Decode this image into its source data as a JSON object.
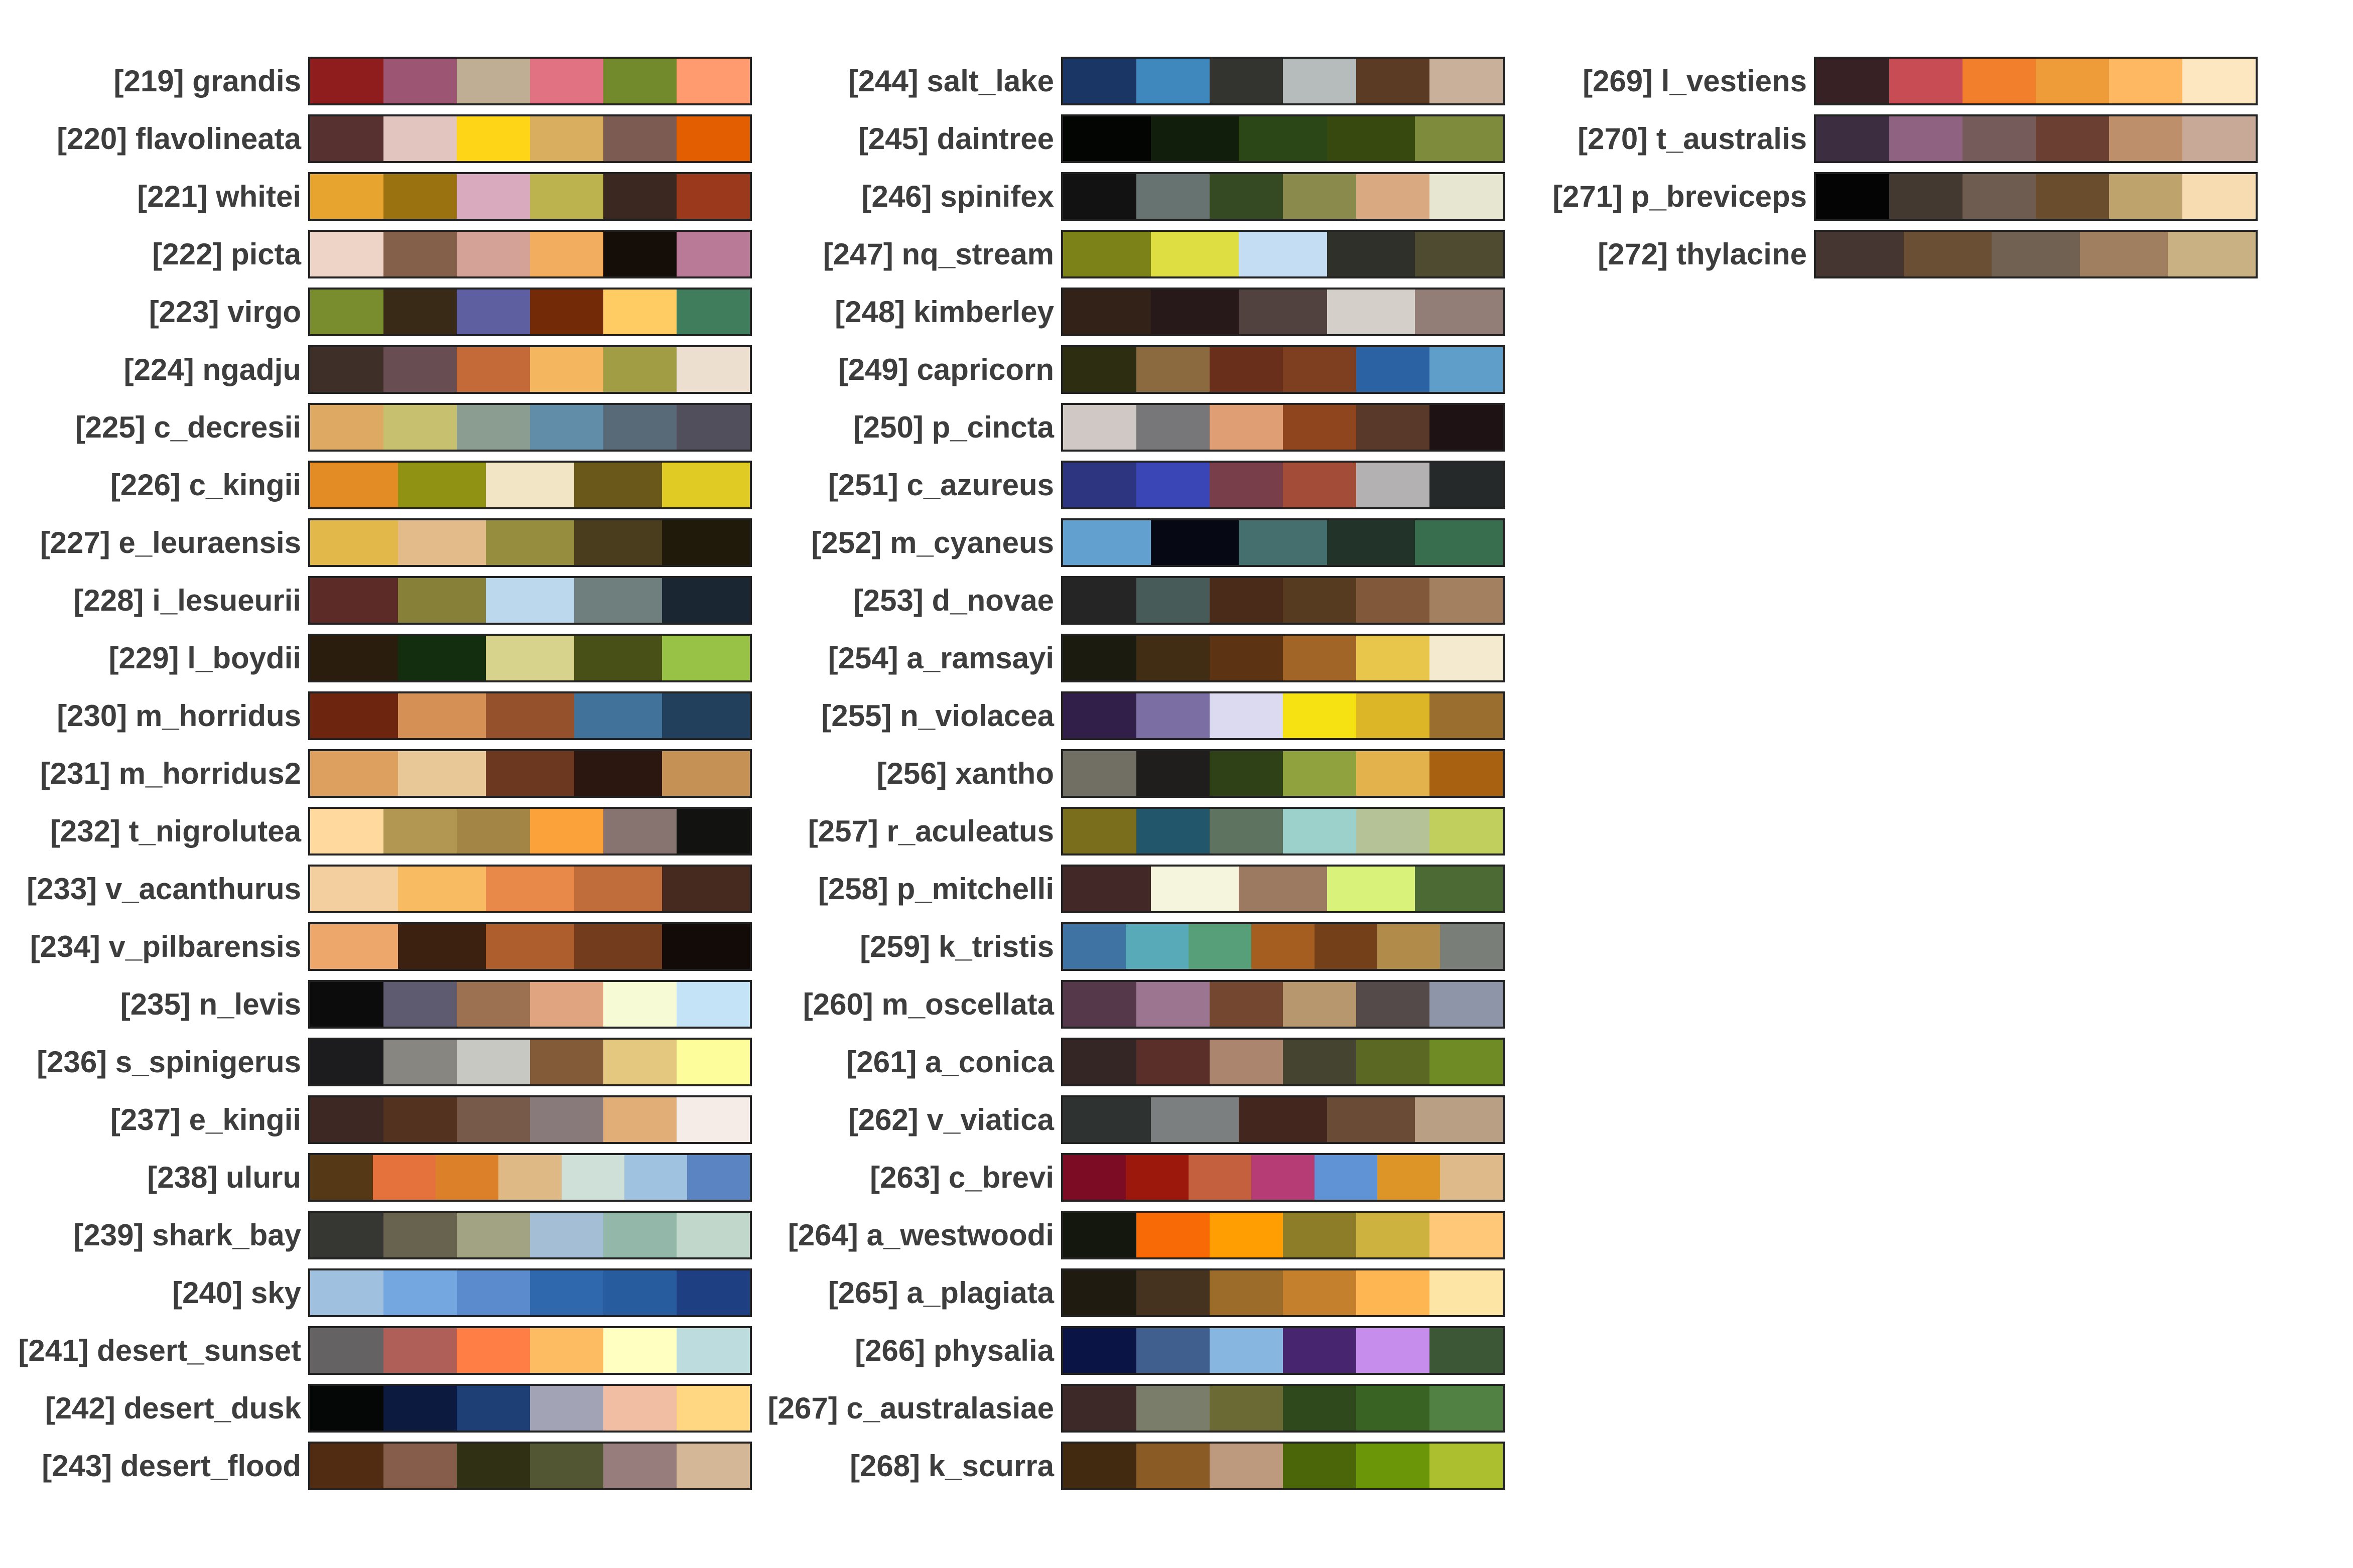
{
  "columns": [
    {
      "palettes": [
        {
          "label": "[219] grandis",
          "colors": [
            "#8f1d1e",
            "#9c5673",
            "#bfae94",
            "#e07282",
            "#728a2c",
            "#ff9b6e"
          ]
        },
        {
          "label": "[220] flavolineata",
          "colors": [
            "#573030",
            "#e3c5bf",
            "#ffd517",
            "#d9ae5f",
            "#7c5c52",
            "#e35e00"
          ]
        },
        {
          "label": "[221] whitei",
          "colors": [
            "#e7a42f",
            "#9a7210",
            "#d9a9bd",
            "#bcb34f",
            "#3b2820",
            "#9b391d"
          ]
        },
        {
          "label": "[222] picta",
          "colors": [
            "#eed4c7",
            "#84604b",
            "#d5a298",
            "#f2ad5e",
            "#150d08",
            "#b97a98"
          ]
        },
        {
          "label": "[223] virgo",
          "colors": [
            "#7a8d2e",
            "#382a16",
            "#5d5fa1",
            "#732a06",
            "#ffcb63",
            "#3f7d5c"
          ]
        },
        {
          "label": "[224] ngadju",
          "colors": [
            "#3e2f28",
            "#684e52",
            "#c36a38",
            "#f4b760",
            "#a09d44",
            "#eddfcf"
          ]
        },
        {
          "label": "[225] c_decresii",
          "colors": [
            "#dea962",
            "#c7c16f",
            "#8b9d91",
            "#628da8",
            "#586a78",
            "#514f5c"
          ]
        },
        {
          "label": "[226] c_kingii",
          "colors": [
            "#e38b24",
            "#8f9212",
            "#f1e5c5",
            "#6a581a",
            "#dfcb23"
          ]
        },
        {
          "label": "[227] e_leuraensis",
          "colors": [
            "#e3b84a",
            "#e3ba89",
            "#968d3f",
            "#4a3d1e",
            "#201a0a"
          ]
        },
        {
          "label": "[228] i_lesueurii",
          "colors": [
            "#5c2b27",
            "#878038",
            "#bcd8ed",
            "#6f7f7d",
            "#1a2632"
          ]
        },
        {
          "label": "[229] l_boydii",
          "colors": [
            "#2b1d0d",
            "#132e0f",
            "#d7d28c",
            "#485018",
            "#98c245"
          ]
        },
        {
          "label": "[230] m_horridus",
          "colors": [
            "#6d2510",
            "#d49055",
            "#94512b",
            "#40729a",
            "#22405c"
          ]
        },
        {
          "label": "[231] m_horridus2",
          "colors": [
            "#dea05f",
            "#e9c898",
            "#6d3820",
            "#2b1610",
            "#c69155"
          ]
        },
        {
          "label": "[232] t_nigrolutea",
          "colors": [
            "#ffd99e",
            "#b19752",
            "#a38545",
            "#fba23a",
            "#877471",
            "#121210"
          ]
        },
        {
          "label": "[233] v_acanthurus",
          "colors": [
            "#f3cfa0",
            "#f9bb62",
            "#e8894a",
            "#c06d3b",
            "#472a1f"
          ]
        },
        {
          "label": "[234] v_pilbarensis",
          "colors": [
            "#eda76b",
            "#3c2010",
            "#ae5e2d",
            "#733d1d",
            "#130b08"
          ]
        },
        {
          "label": "[235] n_levis",
          "colors": [
            "#0c0c0c",
            "#5e5a6f",
            "#9c7151",
            "#e0a580",
            "#f7fbd5",
            "#c5e3f6"
          ]
        },
        {
          "label": "[236] s_spinigerus",
          "colors": [
            "#1c1c1e",
            "#878680",
            "#c8c8c3",
            "#835b38",
            "#e5c87f",
            "#fdfe9b"
          ]
        },
        {
          "label": "[237] e_kingii",
          "colors": [
            "#3e2823",
            "#533220",
            "#775a49",
            "#887a7a",
            "#e1ae77",
            "#f6ece7"
          ]
        },
        {
          "label": "[238] uluru",
          "colors": [
            "#553816",
            "#e5723c",
            "#dc812a",
            "#dfb985",
            "#cfe0d9",
            "#9fc2e0",
            "#5b84c2"
          ]
        },
        {
          "label": "[239] shark_bay",
          "colors": [
            "#363633",
            "#67634f",
            "#a1a382",
            "#a4bfd5",
            "#93b7a8",
            "#c2d7cb"
          ]
        },
        {
          "label": "[240] sky",
          "colors": [
            "#9fc0de",
            "#74a6df",
            "#5b8acd",
            "#3068ad",
            "#275c9e",
            "#1e3f82"
          ]
        },
        {
          "label": "[241] desert_sunset",
          "colors": [
            "#646262",
            "#af5f58",
            "#fe7e46",
            "#fdbc62",
            "#feffc1",
            "#bcdcde"
          ]
        },
        {
          "label": "[242] desert_dusk",
          "colors": [
            "#050706",
            "#0c1a40",
            "#1d3f76",
            "#a2a4b6",
            "#f1bea3",
            "#ffd783"
          ]
        },
        {
          "label": "[243] desert_flood",
          "colors": [
            "#512c13",
            "#865c4a",
            "#303015",
            "#525632",
            "#977d7c",
            "#d4b797"
          ]
        }
      ]
    },
    {
      "palettes": [
        {
          "label": "[244] salt_lake",
          "colors": [
            "#1a3665",
            "#3f88bd",
            "#33342f",
            "#b6bcbb",
            "#5b3b24",
            "#c8b09a"
          ]
        },
        {
          "label": "[245] daintree",
          "colors": [
            "#030502",
            "#111e0b",
            "#2b4617",
            "#37490f",
            "#7e8a3c"
          ]
        },
        {
          "label": "[246] spinifex",
          "colors": [
            "#121212",
            "#677370",
            "#354a23",
            "#8a8a4c",
            "#d9aa82",
            "#e7e6d1"
          ]
        },
        {
          "label": "[247] nq_stream",
          "colors": [
            "#7c8118",
            "#dede42",
            "#c5ddf3",
            "#30302a",
            "#4f4b30"
          ]
        },
        {
          "label": "[248] kimberley",
          "colors": [
            "#332217",
            "#27191a",
            "#514240",
            "#d4cfc9",
            "#937d77"
          ]
        },
        {
          "label": "[249] capricorn",
          "colors": [
            "#2d2d12",
            "#8c6a40",
            "#6a2f1a",
            "#7e3f20",
            "#2b62a3",
            "#5f9ec8"
          ]
        },
        {
          "label": "[250] p_cincta",
          "colors": [
            "#d0c8c4",
            "#77777a",
            "#e09e74",
            "#8f461f",
            "#593a2a",
            "#1e1214"
          ]
        },
        {
          "label": "[251] c_azureus",
          "colors": [
            "#2e3580",
            "#3a46b5",
            "#783e49",
            "#a34c38",
            "#b3b1b1",
            "#262929"
          ]
        },
        {
          "label": "[252] m_cyaneus",
          "colors": [
            "#62a1cf",
            "#060913",
            "#456f6f",
            "#223329",
            "#386d4e"
          ]
        },
        {
          "label": "[253] d_novae",
          "colors": [
            "#252525",
            "#475c59",
            "#4a2a19",
            "#573b20",
            "#82583a",
            "#a38060"
          ]
        },
        {
          "label": "[254] a_ramsayi",
          "colors": [
            "#1b1b0f",
            "#412c14",
            "#5c3414",
            "#a06527",
            "#e8c54b",
            "#f4ead0"
          ]
        },
        {
          "label": "[255] n_violacea",
          "colors": [
            "#321f49",
            "#7a6ea2",
            "#dbdaf0",
            "#f6e113",
            "#dcb627",
            "#9a6e2e"
          ]
        },
        {
          "label": "[256] xantho",
          "colors": [
            "#716e64",
            "#1f1e1c",
            "#2f4117",
            "#8fa23e",
            "#e3b24d",
            "#a76111"
          ]
        },
        {
          "label": "[257] r_aculeatus",
          "colors": [
            "#7a6e1c",
            "#22566b",
            "#5e7461",
            "#9cd1cb",
            "#b5c297",
            "#c1d05c"
          ]
        },
        {
          "label": "[258] p_mitchelli",
          "colors": [
            "#422826",
            "#f4f5dc",
            "#9c7961",
            "#d9f27a",
            "#4b6a34"
          ]
        },
        {
          "label": "[259] k_tristis",
          "colors": [
            "#3f73a4",
            "#59aab9",
            "#579f79",
            "#a65d20",
            "#73401a",
            "#b18b4a",
            "#7a7e78"
          ]
        },
        {
          "label": "[260] m_oscellata",
          "colors": [
            "#55394a",
            "#9c7690",
            "#744730",
            "#b7976e",
            "#534a49",
            "#8f95a8"
          ]
        },
        {
          "label": "[261] a_conica",
          "colors": [
            "#342625",
            "#5a2e29",
            "#ac856f",
            "#444431",
            "#5a6823",
            "#6e8b25"
          ]
        },
        {
          "label": "[262] v_viatica",
          "colors": [
            "#2e3331",
            "#7b7f80",
            "#43271f",
            "#6a4c36",
            "#b9a085"
          ]
        },
        {
          "label": "[263] c_brevi",
          "colors": [
            "#7c0b24",
            "#9c170c",
            "#c4603e",
            "#b53c74",
            "#6092d6",
            "#dd9527",
            "#deb98a"
          ]
        },
        {
          "label": "[264] a_westwoodi",
          "colors": [
            "#13170e",
            "#f76a05",
            "#fe9e03",
            "#8d7d28",
            "#ceb23f",
            "#fec878"
          ]
        },
        {
          "label": "[265] a_plagiata",
          "colors": [
            "#1f1b10",
            "#45331f",
            "#9b6c2a",
            "#c5802e",
            "#feb652",
            "#fde5a5"
          ]
        },
        {
          "label": "[266] physalia",
          "colors": [
            "#0a1545",
            "#415f8e",
            "#87b6e1",
            "#48266f",
            "#c68ded",
            "#3b5735"
          ]
        },
        {
          "label": "[267] c_australasiae",
          "colors": [
            "#3d2928",
            "#7a7d6a",
            "#6b6a35",
            "#30491c",
            "#386322",
            "#518243"
          ]
        },
        {
          "label": "[268] k_scurra",
          "colors": [
            "#422a10",
            "#8a5b25",
            "#bd9a7e",
            "#4a6609",
            "#6b9608",
            "#abbf2f"
          ]
        }
      ]
    },
    {
      "palettes": [
        {
          "label": "[269] l_vestiens",
          "colors": [
            "#382124",
            "#c74c53",
            "#f27f2c",
            "#ee9b39",
            "#fdb861",
            "#fde7c1"
          ]
        },
        {
          "label": "[270] t_australis",
          "colors": [
            "#3d2d40",
            "#8f6282",
            "#755b5a",
            "#6c3f33",
            "#bd8f6b",
            "#c8a998"
          ]
        },
        {
          "label": "[271] p_breviceps",
          "colors": [
            "#040404",
            "#433931",
            "#6e5c51",
            "#694d2d",
            "#bea36c",
            "#f6dcb0"
          ]
        },
        {
          "label": "[272] thylacine",
          "colors": [
            "#463632",
            "#6a4f35",
            "#706153",
            "#a07f60",
            "#c9b183"
          ]
        }
      ]
    }
  ]
}
